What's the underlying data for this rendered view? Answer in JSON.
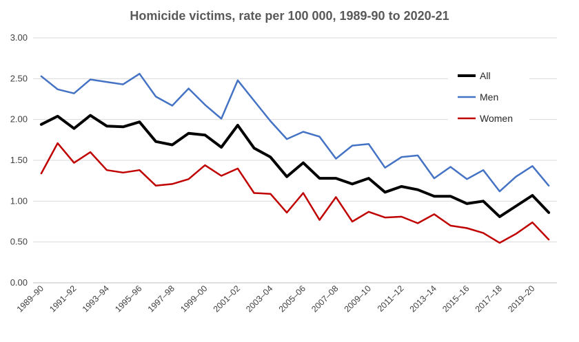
{
  "chart_data": {
    "type": "line",
    "title": "Homicide victims, rate per  100 000, 1989-90 to 2020-21",
    "xlabel": "",
    "ylabel": "",
    "ylim": [
      0,
      3
    ],
    "yticks": [
      "0.00",
      "0.50",
      "1.00",
      "1.50",
      "2.00",
      "2.50",
      "3.00"
    ],
    "categories": [
      "1989–90",
      "1990–91",
      "1991–92",
      "1992–93",
      "1993–94",
      "1994–95",
      "1995–96",
      "1996–97",
      "1997–98",
      "1998–99",
      "1999–00",
      "2000–01",
      "2001–02",
      "2002–03",
      "2003–04",
      "2004–05",
      "2005–06",
      "2006–07",
      "2007–08",
      "2008–09",
      "2009–10",
      "2010–11",
      "2011–12",
      "2012–13",
      "2013–14",
      "2014–15",
      "2015–16",
      "2016–17",
      "2017–18",
      "2018–19",
      "2019–20",
      "2020–21"
    ],
    "shown_tick_labels": [
      "1989–90",
      "1991–92",
      "1993–94",
      "1995–96",
      "1997–98",
      "1999–00",
      "2001–02",
      "2003–04",
      "2005–06",
      "2007–08",
      "2009–10",
      "2011–12",
      "2013–14",
      "2015–16",
      "2017–18",
      "2019–20"
    ],
    "grid": "horizontal",
    "legend_position": "top-right",
    "series": [
      {
        "name": "All",
        "color": "#000000",
        "values": [
          1.94,
          2.04,
          1.89,
          2.05,
          1.92,
          1.91,
          1.97,
          1.73,
          1.69,
          1.83,
          1.81,
          1.66,
          1.93,
          1.65,
          1.54,
          1.3,
          1.47,
          1.28,
          1.28,
          1.21,
          1.28,
          1.11,
          1.18,
          1.14,
          1.06,
          1.06,
          0.97,
          1.0,
          0.81,
          0.94,
          1.07,
          0.86
        ]
      },
      {
        "name": "Men",
        "color": "#4472C4",
        "values": [
          2.53,
          2.37,
          2.32,
          2.49,
          2.46,
          2.43,
          2.56,
          2.28,
          2.17,
          2.38,
          2.18,
          2.01,
          2.48,
          2.23,
          1.98,
          1.76,
          1.85,
          1.79,
          1.52,
          1.68,
          1.7,
          1.41,
          1.54,
          1.56,
          1.28,
          1.42,
          1.27,
          1.38,
          1.12,
          1.3,
          1.43,
          1.19
        ]
      },
      {
        "name": "Women",
        "color": "#C00000",
        "values": [
          1.34,
          1.71,
          1.47,
          1.6,
          1.38,
          1.35,
          1.38,
          1.19,
          1.21,
          1.27,
          1.44,
          1.31,
          1.4,
          1.1,
          1.09,
          0.86,
          1.1,
          0.77,
          1.05,
          0.75,
          0.87,
          0.8,
          0.81,
          0.73,
          0.84,
          0.7,
          0.67,
          0.61,
          0.49,
          0.6,
          0.74,
          0.53
        ]
      }
    ]
  }
}
